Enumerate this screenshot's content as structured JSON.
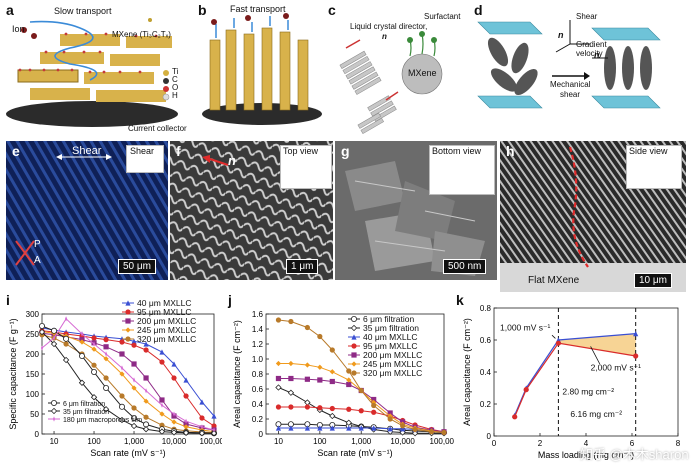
{
  "schematics": {
    "a": {
      "label": "a",
      "slow_transport": "Slow transport",
      "ion": "Ion",
      "mxene": "MXene (Ti₃C₂Tₓ)",
      "legend": [
        "Ti",
        "C",
        "O",
        "H"
      ],
      "current_collector": "Current collector"
    },
    "b": {
      "label": "b",
      "fast_transport": "Fast transport"
    },
    "c": {
      "label": "c",
      "director": "Liquid crystal director,",
      "n": "n",
      "surfactant": "Surfactant",
      "mxene": "MXene"
    },
    "d": {
      "label": "d",
      "shear": "Shear",
      "gradient_velocity": "Gradient velocity",
      "n": "n",
      "mechanical": "Mechanical",
      "shear2": "shear"
    }
  },
  "micrographs": {
    "e": {
      "label": "e",
      "shear_arrow": "Shear",
      "shear_inset": "Shear",
      "p": "P",
      "a": "A",
      "scale": "50 μm"
    },
    "f": {
      "label": "f",
      "title": "Top view",
      "n": "n",
      "scale": "1 μm"
    },
    "g": {
      "label": "g",
      "title": "Bottom view",
      "scale": "500 nm"
    },
    "h": {
      "label": "h",
      "title": "Side view",
      "flat": "Flat MXene",
      "scale": "10 μm"
    }
  },
  "watermark": "知乎 @木木sharon",
  "colors": {
    "blue": "#3a4fd3",
    "red": "#d92b2b",
    "purple": "#8e2a86",
    "orange": "#f09a1c",
    "brown": "#b87a2a",
    "magenta": "#d66ad3",
    "black": "#222222",
    "fill": "#f6cf8a"
  },
  "chart_data": [
    {
      "panel": "i",
      "type": "line",
      "xlabel": "Scan rate (mV s⁻¹)",
      "ylabel": "Specific capacitance (F g⁻¹)",
      "xscale": "log",
      "xlim": [
        5,
        100000
      ],
      "ylim": [
        0,
        300
      ],
      "xticks": [
        "10",
        "100",
        "1,000",
        "10,000",
        "100,000"
      ],
      "yticks": [
        "0",
        "50",
        "100",
        "150",
        "200",
        "250",
        "300"
      ],
      "legend_top": [
        "40 μm MXLLC",
        "95 μm MXLLC",
        "200 μm MXLLC",
        "245 μm MXLLC",
        "320 μm MXLLC"
      ],
      "legend_bottom": [
        "6 μm filtration",
        "35 μm filtration",
        "180 μm macroporous film"
      ],
      "series": [
        {
          "name": "40 μm MXLLC",
          "color": "blue",
          "marker": "triangle",
          "x": [
            5,
            10,
            20,
            50,
            100,
            200,
            500,
            1000,
            2000,
            5000,
            10000,
            20000,
            50000,
            100000
          ],
          "y": [
            265,
            260,
            255,
            250,
            245,
            242,
            238,
            232,
            225,
            205,
            175,
            135,
            80,
            45
          ]
        },
        {
          "name": "95 μm MXLLC",
          "color": "red",
          "marker": "circle",
          "x": [
            5,
            10,
            20,
            50,
            100,
            200,
            500,
            1000,
            2000,
            5000,
            10000,
            20000,
            50000,
            100000
          ],
          "y": [
            258,
            255,
            250,
            245,
            240,
            236,
            230,
            222,
            210,
            180,
            140,
            95,
            40,
            20
          ]
        },
        {
          "name": "200 μm MXLLC",
          "color": "purple",
          "marker": "square",
          "x": [
            5,
            10,
            20,
            50,
            100,
            200,
            500,
            1000,
            2000,
            5000,
            10000,
            20000,
            50000,
            100000
          ],
          "y": [
            252,
            248,
            243,
            236,
            228,
            218,
            200,
            175,
            140,
            85,
            45,
            25,
            15,
            10
          ]
        },
        {
          "name": "245 μm MXLLC",
          "color": "orange",
          "marker": "diamond",
          "x": [
            5,
            10,
            20,
            50,
            100,
            200,
            500,
            1000,
            2000,
            5000,
            10000,
            20000,
            50000,
            100000
          ],
          "y": [
            256,
            252,
            245,
            230,
            212,
            188,
            150,
            115,
            82,
            50,
            30,
            18,
            10,
            6
          ]
        },
        {
          "name": "320 μm MXLLC",
          "color": "brown",
          "marker": "circle",
          "x": [
            5,
            10,
            20,
            50,
            100,
            200,
            500,
            1000,
            2000,
            5000,
            10000,
            20000,
            50000,
            100000
          ],
          "y": [
            248,
            240,
            225,
            200,
            172,
            140,
            95,
            65,
            42,
            22,
            12,
            8,
            5,
            3
          ]
        },
        {
          "name": "6 μm filtration",
          "color": "black",
          "marker": "open-circle",
          "x": [
            5,
            10,
            20,
            50,
            100,
            200,
            500,
            1000,
            2000,
            5000,
            10000,
            20000,
            50000,
            100000
          ],
          "y": [
            270,
            258,
            238,
            195,
            155,
            115,
            68,
            40,
            24,
            12,
            7,
            4,
            3,
            2
          ]
        },
        {
          "name": "35 μm filtration",
          "color": "black",
          "marker": "open-diamond",
          "x": [
            5,
            10,
            20,
            50,
            100,
            200,
            500,
            1000,
            2000,
            5000,
            10000,
            20000,
            50000,
            100000
          ],
          "y": [
            255,
            225,
            185,
            128,
            92,
            62,
            35,
            20,
            12,
            6,
            4,
            3,
            2,
            2
          ]
        },
        {
          "name": "180 μm macroporous film",
          "color": "magenta",
          "marker": "star",
          "x": [
            5,
            10,
            20,
            50,
            100,
            200,
            500,
            1000,
            2000,
            5000,
            10000,
            20000,
            50000,
            100000
          ],
          "y": [
            215,
            240,
            288,
            250,
            225,
            200,
            165,
            135,
            108,
            72,
            50,
            32,
            18,
            10
          ]
        }
      ]
    },
    {
      "panel": "j",
      "type": "line",
      "xlabel": "Scan rate (mV s⁻¹)",
      "ylabel": "Areal capacitance (F cm⁻²)",
      "xscale": "log",
      "xlim": [
        5,
        100000
      ],
      "ylim": [
        0,
        1.6
      ],
      "xticks": [
        "10",
        "100",
        "1,000",
        "10,000",
        "100,000"
      ],
      "yticks": [
        "0",
        "0.2",
        "0.4",
        "0.6",
        "0.8",
        "1.0",
        "1.2",
        "1.4",
        "1.6"
      ],
      "legend": [
        "6 μm filtration",
        "35 μm filtration",
        "40 μm MXLLC",
        "95 μm MXLLC",
        "200 μm MXLLC",
        "245 μm MXLLC",
        "320 μm MXLLC"
      ],
      "series": [
        {
          "name": "6 μm filtration",
          "color": "black",
          "marker": "open-circle",
          "x": [
            10,
            20,
            50,
            100,
            200,
            500,
            1000,
            2000,
            5000,
            10000,
            20000,
            50000,
            100000
          ],
          "y": [
            0.13,
            0.13,
            0.13,
            0.12,
            0.12,
            0.11,
            0.1,
            0.09,
            0.07,
            0.05,
            0.04,
            0.03,
            0.02
          ]
        },
        {
          "name": "35 μm filtration",
          "color": "black",
          "marker": "open-diamond",
          "x": [
            10,
            20,
            50,
            100,
            200,
            500,
            1000,
            2000,
            5000,
            10000,
            20000,
            50000,
            100000
          ],
          "y": [
            0.62,
            0.55,
            0.42,
            0.32,
            0.24,
            0.15,
            0.1,
            0.06,
            0.03,
            0.02,
            0.01,
            0.01,
            0.01
          ]
        },
        {
          "name": "40 μm MXLLC",
          "color": "blue",
          "marker": "triangle",
          "x": [
            10,
            20,
            50,
            100,
            200,
            500,
            1000,
            2000,
            5000,
            10000,
            20000,
            50000,
            100000
          ],
          "y": [
            0.08,
            0.08,
            0.08,
            0.08,
            0.08,
            0.08,
            0.08,
            0.08,
            0.07,
            0.07,
            0.06,
            0.04,
            0.03
          ]
        },
        {
          "name": "95 μm MXLLC",
          "color": "red",
          "marker": "circle",
          "x": [
            10,
            20,
            50,
            100,
            200,
            500,
            1000,
            2000,
            5000,
            10000,
            20000,
            50000,
            100000
          ],
          "y": [
            0.36,
            0.36,
            0.36,
            0.35,
            0.34,
            0.33,
            0.31,
            0.29,
            0.24,
            0.18,
            0.12,
            0.06,
            0.03
          ]
        },
        {
          "name": "200 μm MXLLC",
          "color": "purple",
          "marker": "square",
          "x": [
            10,
            20,
            50,
            100,
            200,
            500,
            1000,
            2000,
            5000,
            10000,
            20000,
            50000,
            100000
          ],
          "y": [
            0.74,
            0.74,
            0.73,
            0.72,
            0.7,
            0.66,
            0.58,
            0.46,
            0.28,
            0.16,
            0.09,
            0.05,
            0.03
          ]
        },
        {
          "name": "245 μm MXLLC",
          "color": "orange",
          "marker": "diamond",
          "x": [
            10,
            20,
            50,
            100,
            200,
            500,
            1000,
            2000,
            5000,
            10000,
            20000,
            50000,
            100000
          ],
          "y": [
            0.94,
            0.94,
            0.92,
            0.89,
            0.83,
            0.72,
            0.58,
            0.42,
            0.24,
            0.13,
            0.08,
            0.04,
            0.02
          ]
        },
        {
          "name": "320 μm MXLLC",
          "color": "brown",
          "marker": "circle",
          "x": [
            10,
            20,
            50,
            100,
            200,
            500,
            1000,
            2000,
            5000,
            10000,
            20000,
            50000,
            100000
          ],
          "y": [
            1.52,
            1.5,
            1.42,
            1.3,
            1.12,
            0.84,
            0.58,
            0.38,
            0.2,
            0.11,
            0.06,
            0.03,
            0.02
          ]
        }
      ]
    },
    {
      "panel": "k",
      "type": "line",
      "xlabel": "Mass loading (mg cm⁻²)",
      "ylabel": "Areal capacitance (F cm⁻²)",
      "xlim": [
        0,
        8
      ],
      "ylim": [
        0,
        0.8
      ],
      "xticks": [
        "0",
        "2",
        "4",
        "6",
        "8"
      ],
      "yticks": [
        "0",
        "0.2",
        "0.4",
        "0.6",
        "0.8"
      ],
      "annotations": [
        "1,000 mV s⁻¹",
        "2,000 mV s⁻¹",
        "2.80 mg cm⁻²",
        "6.16 mg cm⁻²"
      ],
      "vlines": [
        2.8,
        6.16
      ],
      "series": [
        {
          "name": "1,000 mV s⁻¹",
          "color": "blue",
          "marker": "triangle",
          "x": [
            0.9,
            1.4,
            2.8,
            6.16
          ],
          "y": [
            0.13,
            0.3,
            0.6,
            0.64
          ]
        },
        {
          "name": "2,000 mV s⁻¹",
          "color": "red",
          "marker": "circle",
          "x": [
            0.9,
            1.4,
            2.8,
            6.16
          ],
          "y": [
            0.12,
            0.29,
            0.58,
            0.5
          ]
        }
      ]
    }
  ]
}
